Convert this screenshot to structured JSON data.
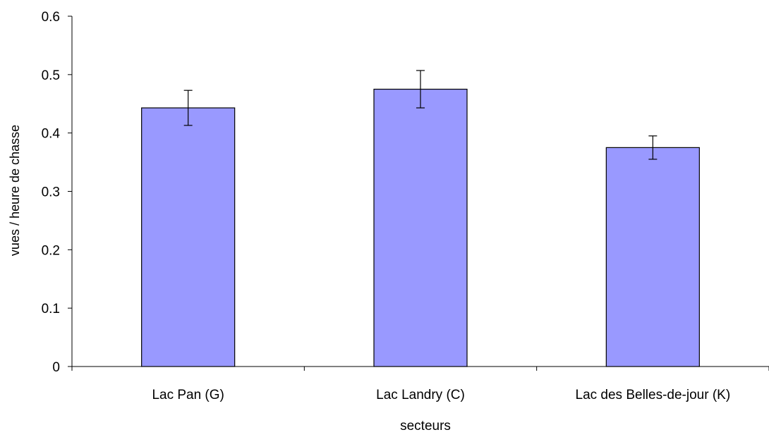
{
  "chart_data": {
    "type": "bar",
    "categories": [
      "Lac Pan (G)",
      "Lac Landry (C)",
      "Lac des Belles-de-jour (K)"
    ],
    "values": [
      0.443,
      0.475,
      0.375
    ],
    "error": [
      0.03,
      0.032,
      0.02
    ],
    "xlabel": "secteurs",
    "ylabel": "vues / heure de chasse",
    "ylim": [
      0,
      0.6
    ],
    "yticks": [
      "0",
      "0.1",
      "0.2",
      "0.3",
      "0.4",
      "0.5",
      "0.6"
    ],
    "grid": false,
    "legend": "none",
    "colors": {
      "bar_fill": "#9999ff",
      "bar_stroke": "#000000",
      "axis": "#000000"
    }
  }
}
